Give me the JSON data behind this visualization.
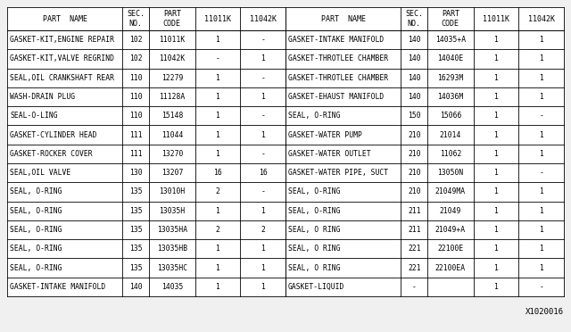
{
  "watermark": "X1020016",
  "background_color": "#f0f0f0",
  "header_left": [
    "PART  NAME",
    "SEC.\nNO.",
    "PART\nCODE",
    "11011K",
    "11042K"
  ],
  "header_right": [
    "PART  NAME",
    "SEC.\nNO.",
    "PART\nCODE",
    "11011K",
    "11042K"
  ],
  "rows_left": [
    [
      "GASKET-KIT,ENGINE REPAIR",
      "102",
      "11011K",
      "1",
      "-"
    ],
    [
      "GASKET-KIT,VALVE REGRIND",
      "102",
      "11042K",
      "-",
      "1"
    ],
    [
      "SEAL,OIL CRANKSHAFT REAR",
      "110",
      "12279",
      "1",
      "-"
    ],
    [
      "WASH-DRAIN PLUG",
      "110",
      "11128A",
      "1",
      "1"
    ],
    [
      "SEAL-O-LING",
      "110",
      "15148",
      "1",
      "-"
    ],
    [
      "GASKET-CYLINDER HEAD",
      "111",
      "11044",
      "1",
      "1"
    ],
    [
      "GASKET-ROCKER COVER",
      "111",
      "13270",
      "1",
      "-"
    ],
    [
      "SEAL,OIL VALVE",
      "130",
      "13207",
      "16",
      "16"
    ],
    [
      "SEAL, O-RING",
      "135",
      "13010H",
      "2",
      "-"
    ],
    [
      "SEAL, O-RING",
      "135",
      "13035H",
      "1",
      "1"
    ],
    [
      "SEAL, O-RING",
      "135",
      "13035HA",
      "2",
      "2"
    ],
    [
      "SEAL, O-RING",
      "135",
      "13035HB",
      "1",
      "1"
    ],
    [
      "SEAL, O-RING",
      "135",
      "13035HC",
      "1",
      "1"
    ],
    [
      "GASKET-INTAKE MANIFOLD",
      "140",
      "14035",
      "1",
      "1"
    ]
  ],
  "rows_right": [
    [
      "GASKET-INTAKE MANIFOLD",
      "140",
      "14035+A",
      "1",
      "1"
    ],
    [
      "GASKET-THROTLEE CHAMBER",
      "140",
      "14040E",
      "1",
      "1"
    ],
    [
      "GASKET-THROTLEE CHAMBER",
      "140",
      "16293M",
      "1",
      "1"
    ],
    [
      "GASKET-EHAUST MANIFOLD",
      "140",
      "14036M",
      "1",
      "1"
    ],
    [
      "SEAL, O-RING",
      "150",
      "15066",
      "1",
      "-"
    ],
    [
      "GASKET-WATER PUMP",
      "210",
      "21014",
      "1",
      "1"
    ],
    [
      "GASKET-WATER OUTLET",
      "210",
      "11062",
      "1",
      "1"
    ],
    [
      "GASKET-WATER PIPE, SUCT",
      "210",
      "13050N",
      "1",
      "-"
    ],
    [
      "SEAL, O-RING",
      "210",
      "21049MA",
      "1",
      "1"
    ],
    [
      "SEAL, O-RING",
      "211",
      "21049",
      "1",
      "1"
    ],
    [
      "SEAL, O RING",
      "211",
      "21049+A",
      "1",
      "1"
    ],
    [
      "SEAL, O RING",
      "221",
      "22100E",
      "1",
      "1"
    ],
    [
      "SEAL, O RING",
      "221",
      "22100EA",
      "1",
      "1"
    ],
    [
      "GASKET-LIQUID",
      "-",
      "",
      "1",
      "-"
    ]
  ],
  "font_size": 5.8,
  "header_font_size": 6.0
}
